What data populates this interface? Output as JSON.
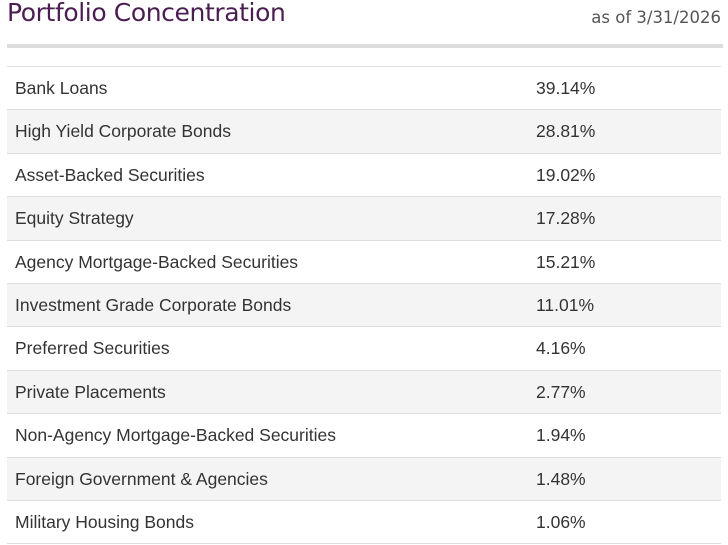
{
  "header": {
    "title": "Portfolio Concentration",
    "as_of": "as of 3/31/2026"
  },
  "table": {
    "rows": [
      {
        "label": "Bank Loans",
        "value": "39.14%"
      },
      {
        "label": "High Yield Corporate Bonds",
        "value": "28.81%"
      },
      {
        "label": "Asset-Backed Securities",
        "value": "19.02%"
      },
      {
        "label": "Equity Strategy",
        "value": "17.28%"
      },
      {
        "label": "Agency Mortgage-Backed Securities",
        "value": "15.21%"
      },
      {
        "label": "Investment Grade Corporate Bonds",
        "value": "11.01%"
      },
      {
        "label": "Preferred Securities",
        "value": "4.16%"
      },
      {
        "label": "Private Placements",
        "value": "2.77%"
      },
      {
        "label": "Non-Agency Mortgage-Backed Securities",
        "value": "1.94%"
      },
      {
        "label": "Foreign Government & Agencies",
        "value": "1.48%"
      },
      {
        "label": "Military Housing Bonds",
        "value": "1.06%"
      }
    ]
  },
  "colors": {
    "title": "#4b1e52",
    "row_stripe": "#f4f4f4",
    "divider": "#dddddd"
  }
}
